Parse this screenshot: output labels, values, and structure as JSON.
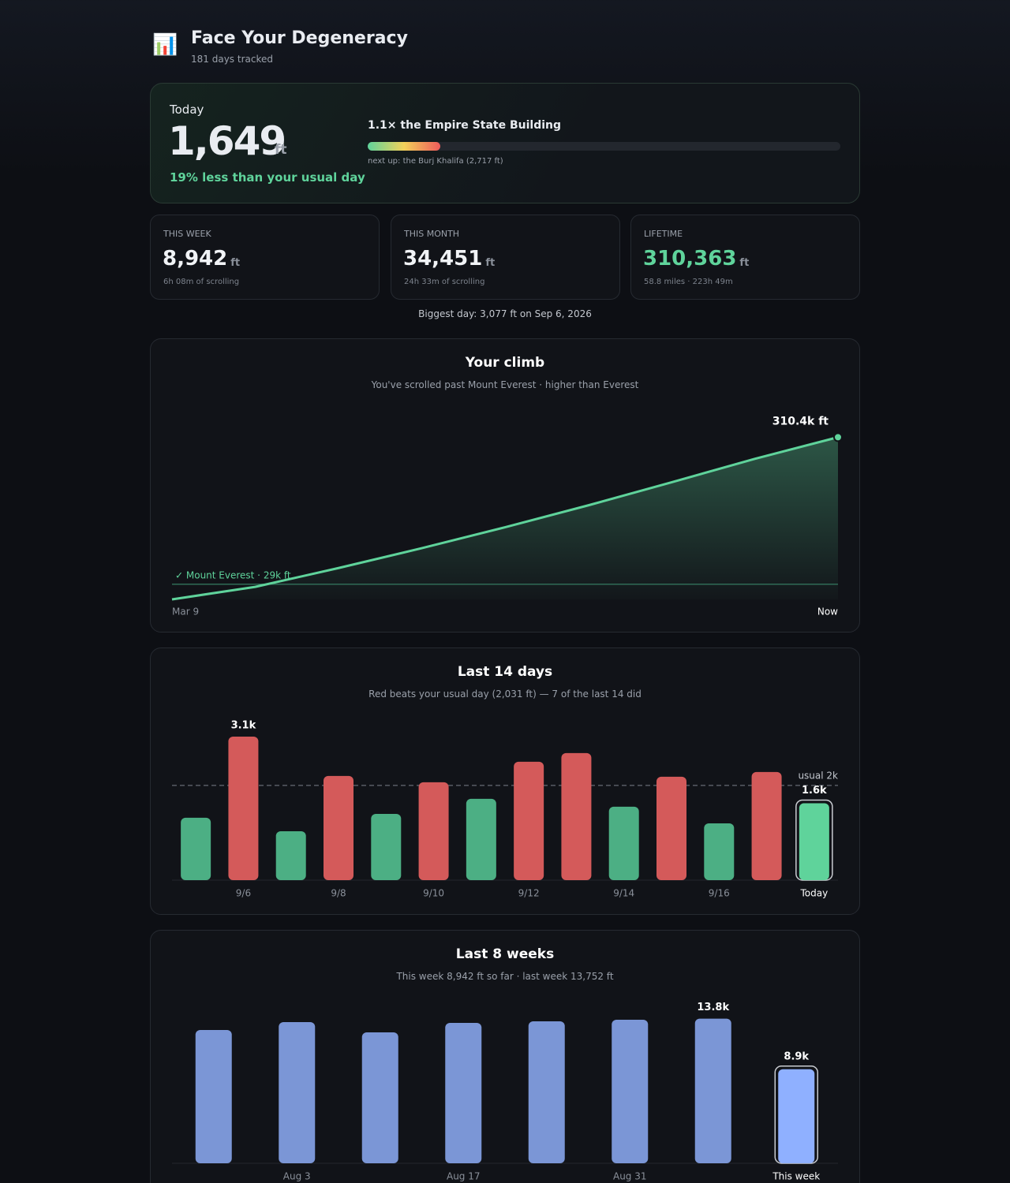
{
  "header": {
    "icon": "📊",
    "title": "Face Your Degeneracy",
    "subtitle": "181 days tracked"
  },
  "today": {
    "label": "Today",
    "value": "1,649",
    "unit": "ft",
    "comparison": "19% less than your usual day",
    "milestone": "1.1× the Empire State Building",
    "progress": {
      "value": 1649,
      "min": 1454,
      "max": 2717
    },
    "next_up": "next up: the Burj Khalifa (2,717 ft)"
  },
  "stats": [
    {
      "label": "THIS WEEK",
      "value": "8,942",
      "unit": "ft",
      "detail": "6h 08m of scrolling"
    },
    {
      "label": "THIS MONTH",
      "value": "34,451",
      "unit": "ft",
      "detail": "24h 33m of scrolling"
    },
    {
      "label": "LIFETIME",
      "value": "310,363",
      "unit": "ft",
      "detail": "58.8 miles · 223h 49m"
    }
  ],
  "biggest_day": "Biggest day: 3,077 ft on Sep 6, 2026",
  "chart_data": [
    {
      "type": "line",
      "title": "Your climb",
      "subtitle": "You've scrolled past Mount Everest · higher than Everest",
      "categories": [
        "Mar 9",
        null,
        null,
        null,
        null,
        null,
        null,
        null,
        "Now"
      ],
      "values": [
        0,
        24000,
        60000,
        98000,
        138000,
        180000,
        224000,
        269000,
        310363
      ],
      "value_labels": [
        null,
        null,
        null,
        null,
        null,
        null,
        null,
        null,
        "310.4k ft"
      ],
      "color": "#5fd39b",
      "area": true,
      "ylim": [
        0,
        320000
      ],
      "reference": {
        "value": 29032,
        "label": "✓ Mount Everest · 29k ft"
      }
    },
    {
      "type": "bar",
      "title": "Last 14 days",
      "subtitle": "Red beats your usual day (2,031 ft) — 7 of the last 14 did",
      "categories": [
        null,
        "9/6",
        null,
        "9/8",
        null,
        "9/10",
        null,
        "9/12",
        null,
        "9/14",
        null,
        "9/16",
        null,
        "Today"
      ],
      "values": [
        1337,
        3077,
        1049,
        2234,
        1421,
        2098,
        1743,
        2538,
        2724,
        1574,
        2217,
        1217,
        2318,
        1649
      ],
      "value_labels": [
        null,
        "3.1k",
        null,
        null,
        null,
        null,
        null,
        null,
        null,
        null,
        null,
        null,
        null,
        "1.6k"
      ],
      "color_above": "#d45a5a",
      "color_below": "#4caf84",
      "highlight_color": "#5fd39b",
      "ylim": [
        0,
        3500
      ],
      "reference": {
        "value": 2031,
        "label": "usual 2k"
      }
    },
    {
      "type": "bar",
      "title": "Last 8 weeks",
      "subtitle": "This week 8,942 ft so far · last week 13,752 ft",
      "categories": [
        null,
        "Aug 3",
        null,
        "Aug 17",
        null,
        "Aug 31",
        null,
        "This week"
      ],
      "values": [
        12675,
        13425,
        12450,
        13350,
        13500,
        13650,
        13752,
        8942
      ],
      "value_labels": [
        null,
        null,
        null,
        null,
        null,
        null,
        "13.8k",
        "8.9k"
      ],
      "color": "#7b96d6",
      "highlight_color": "#8fb0ff",
      "ylim": [
        0,
        15000
      ]
    }
  ]
}
